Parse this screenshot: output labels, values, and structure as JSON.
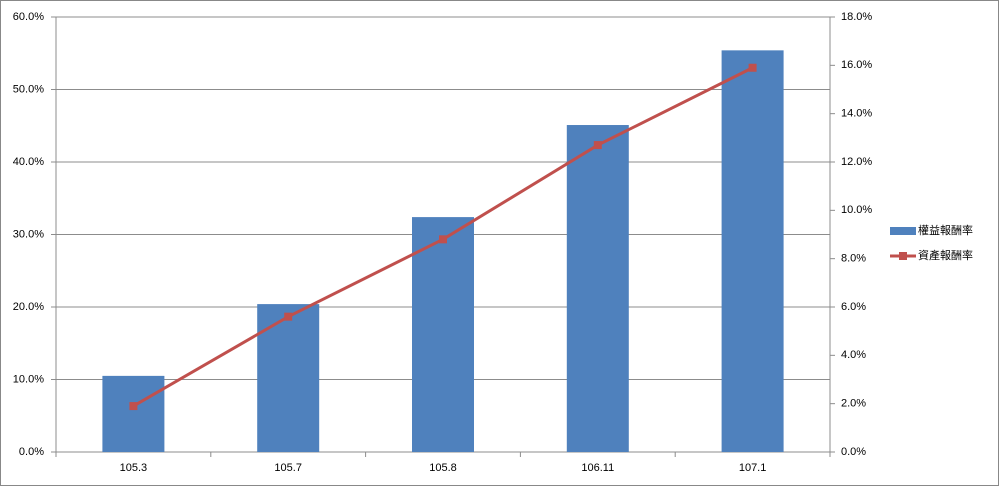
{
  "chart_data": {
    "type": "bar_line",
    "categories": [
      "105.3",
      "105.7",
      "105.8",
      "106.11",
      "107.1"
    ],
    "series": [
      {
        "name": "權益報酬率",
        "type": "bar",
        "color": "#4f81bd",
        "values": [
          10.5,
          20.4,
          32.4,
          45.1,
          55.4
        ]
      },
      {
        "name": "資產報酬率",
        "type": "line",
        "axis": "y2",
        "color": "#c0504d",
        "values": [
          1.9,
          5.6,
          8.8,
          12.7,
          15.9
        ]
      }
    ],
    "ylim": [
      0,
      60
    ],
    "yticks": [
      {
        "value": 0,
        "label": "0.0%"
      },
      {
        "value": 10,
        "label": "10.0%"
      },
      {
        "value": 20,
        "label": "20.0%"
      },
      {
        "value": 30,
        "label": "30.0%"
      },
      {
        "value": 40,
        "label": "40.0%"
      },
      {
        "value": 50,
        "label": "50.0%"
      },
      {
        "value": 60,
        "label": "60.0%"
      }
    ],
    "y2lim": [
      0,
      18
    ],
    "y2ticks": [
      {
        "value": 0,
        "label": "0.0%"
      },
      {
        "value": 2,
        "label": "2.0%"
      },
      {
        "value": 4,
        "label": "4.0%"
      },
      {
        "value": 6,
        "label": "6.0%"
      },
      {
        "value": 8,
        "label": "8.0%"
      },
      {
        "value": 10,
        "label": "10.0%"
      },
      {
        "value": 12,
        "label": "12.0%"
      },
      {
        "value": 14,
        "label": "14.0%"
      },
      {
        "value": 16,
        "label": "16.0%"
      },
      {
        "value": 18,
        "label": "18.0%"
      }
    ],
    "grid": true,
    "legend": "right"
  }
}
